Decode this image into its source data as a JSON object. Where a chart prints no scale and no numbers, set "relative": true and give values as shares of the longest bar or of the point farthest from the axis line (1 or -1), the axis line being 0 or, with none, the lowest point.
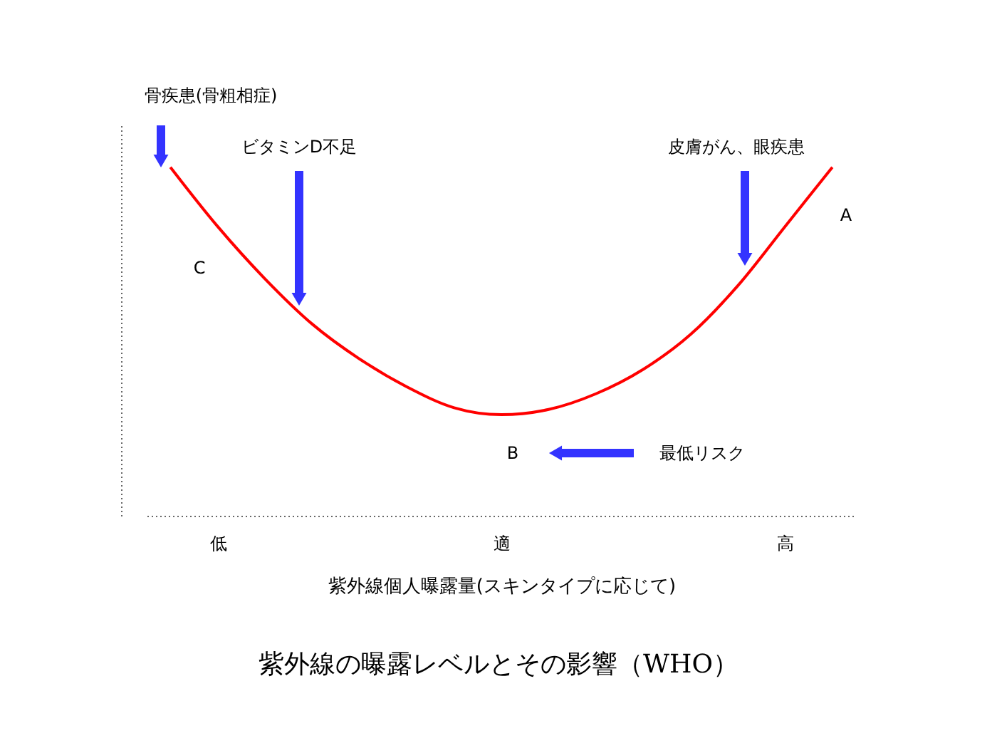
{
  "chart_data": {
    "type": "line",
    "relative": true,
    "title": "紫外線の曝露レベルとその影響（WHO）",
    "xlabel": "紫外線個人曝露量(スキンタイプに応じて)",
    "categories": [
      null,
      "低",
      null,
      null,
      null,
      null,
      null,
      "適",
      null,
      null,
      null,
      null,
      null,
      "高",
      null
    ],
    "series": [
      {
        "color": "#ff0000",
        "values": [
          1.0,
          0.83,
          0.68,
          0.55,
          0.45,
          0.37,
          0.31,
          0.29,
          0.305,
          0.35,
          0.42,
          0.52,
          0.66,
          0.83,
          1.0
        ]
      }
    ],
    "tick_labels": "x",
    "grid": false,
    "marker": "none",
    "line_style": "solid",
    "annotations": [
      "骨疾患(骨粗相症)",
      "ビタミンD不足",
      "皮膚がん、眼疾患",
      "最低リスク",
      "A",
      "B",
      "C"
    ]
  }
}
